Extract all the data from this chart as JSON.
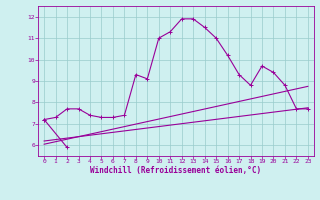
{
  "title": "",
  "xlabel": "Windchill (Refroidissement éolien,°C)",
  "background_color": "#cff0f0",
  "line_color": "#990099",
  "xlim": [
    -0.5,
    23.5
  ],
  "ylim": [
    5.5,
    12.5
  ],
  "xticks": [
    0,
    1,
    2,
    3,
    4,
    5,
    6,
    7,
    8,
    9,
    10,
    11,
    12,
    13,
    14,
    15,
    16,
    17,
    18,
    19,
    20,
    21,
    22,
    23
  ],
  "yticks": [
    6,
    7,
    8,
    9,
    10,
    11,
    12
  ],
  "curve1_x": [
    0,
    1,
    2,
    3,
    4,
    5,
    6,
    7,
    8,
    9,
    10,
    11,
    12,
    13,
    14,
    15,
    16,
    17,
    18,
    19,
    20,
    21,
    22,
    23
  ],
  "curve1_y": [
    7.2,
    7.3,
    7.7,
    7.7,
    7.4,
    7.3,
    7.3,
    7.4,
    9.3,
    9.1,
    11.0,
    11.3,
    11.9,
    11.9,
    11.5,
    11.0,
    10.2,
    9.3,
    8.8,
    9.7,
    9.4,
    8.8,
    7.7,
    7.7
  ],
  "curve2_x": [
    0,
    2
  ],
  "curve2_y": [
    7.2,
    5.9
  ],
  "line1_x": [
    0,
    23
  ],
  "line1_y": [
    6.05,
    8.75
  ],
  "line2_x": [
    0,
    23
  ],
  "line2_y": [
    6.2,
    7.75
  ],
  "grid_color": "#99cccc",
  "xlabel_fontsize": 5.5,
  "tick_fontsize": 4.5
}
